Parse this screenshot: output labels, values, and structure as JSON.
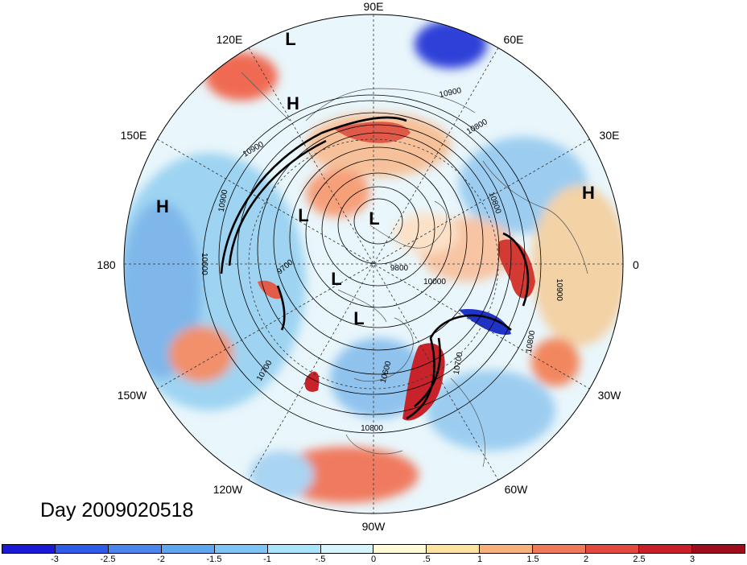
{
  "title": "Day 2009020518",
  "longitude_labels": [
    "90E",
    "60E",
    "30E",
    "0",
    "30W",
    "60W",
    "90W",
    "120W",
    "150W",
    "180",
    "150E",
    "120E"
  ],
  "pressure_centers": [
    {
      "type": "L"
    },
    {
      "type": "H"
    },
    {
      "type": "H"
    },
    {
      "type": "H"
    },
    {
      "type": "L"
    },
    {
      "type": "L"
    },
    {
      "type": "L"
    },
    {
      "type": "L"
    }
  ],
  "contour_labels": [
    "10900",
    "10800",
    "10900",
    "10900",
    "10600",
    "9700",
    "9800",
    "10000",
    "10700",
    "10600",
    "10700",
    "10800",
    "10800",
    "10900",
    "10800"
  ],
  "colorbar": {
    "ticks": [
      "-3",
      "-2.5",
      "-2",
      "-1.5",
      "-1",
      "-.5",
      "0",
      ".5",
      "1",
      "1.5",
      "2",
      "2.5",
      "3"
    ],
    "colors": [
      "#1a1ad6",
      "#2e5ce6",
      "#4a86ec",
      "#5fa6f0",
      "#7fc4f6",
      "#a8e4fb",
      "#d6f4fb",
      "#fffbd6",
      "#fce4a0",
      "#f6b27a",
      "#ef7a5a",
      "#e24a40",
      "#c81e28",
      "#9e0c1c"
    ]
  }
}
